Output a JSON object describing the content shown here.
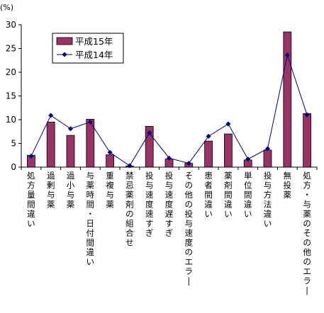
{
  "chart_data": {
    "type": "bar",
    "ylabel": "(%)",
    "ylim": [
      0,
      30
    ],
    "yticks": [
      0,
      5,
      10,
      15,
      20,
      25,
      30
    ],
    "grid": false,
    "legend_position": "top-left",
    "categories": [
      "処方量間違い",
      "過剰与薬",
      "過小与薬",
      "与薬時間・日付間違い",
      "重複与薬",
      "禁忌薬剤の組合せ",
      "投与速度速すぎ",
      "投与速度遅すぎ",
      "その他の投与速度のエラー",
      "患者間違い",
      "薬剤間違い",
      "単位間違い",
      "投与方法違い",
      "無投薬",
      "処方・与薬のその他のエラー"
    ],
    "series": [
      {
        "name": "平成15年",
        "type": "bar",
        "color": "#993366",
        "values": [
          2.5,
          9.5,
          6.7,
          10.1,
          2.6,
          0.2,
          8.6,
          1.7,
          0.8,
          5.5,
          7.0,
          1.5,
          3.6,
          28.5,
          11.3
        ]
      },
      {
        "name": "平成14年",
        "type": "line",
        "color": "#000080",
        "values": [
          2.3,
          10.9,
          8.1,
          9.5,
          3.1,
          0.3,
          7.2,
          1.9,
          0.8,
          6.5,
          9.1,
          1.7,
          3.9,
          23.6,
          11.0
        ]
      }
    ]
  }
}
